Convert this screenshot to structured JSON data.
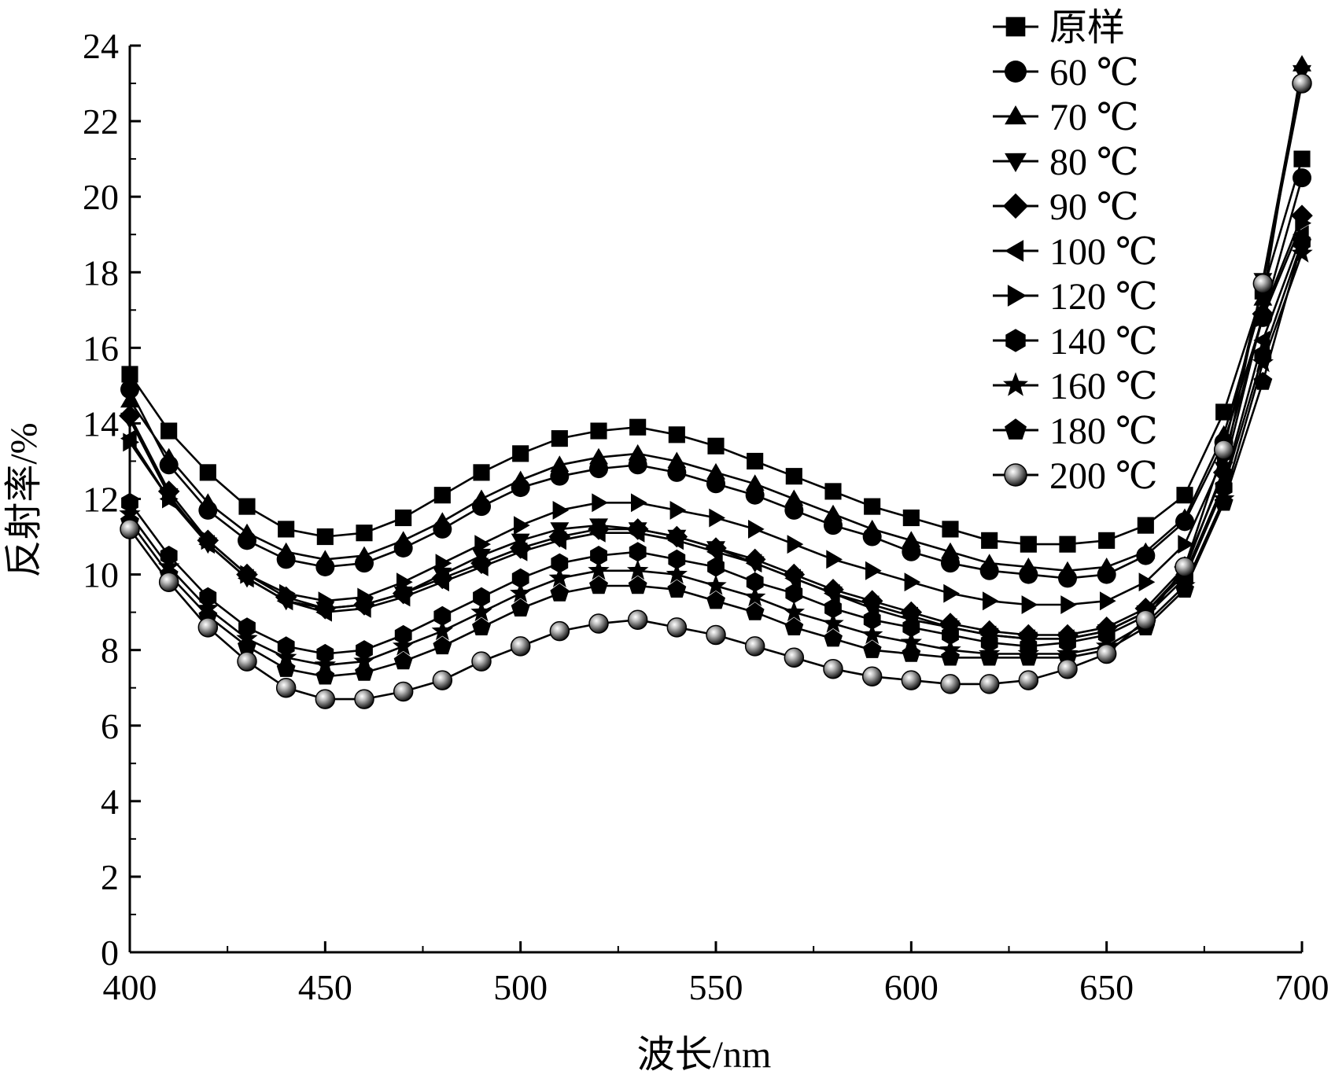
{
  "chart_data": {
    "type": "line",
    "title": "",
    "xlabel": "波长/nm",
    "ylabel": "反射率/%",
    "xlim": [
      400,
      700
    ],
    "ylim": [
      0,
      24
    ],
    "xticks": [
      400,
      450,
      500,
      550,
      600,
      650,
      700
    ],
    "yticks": [
      0,
      2,
      4,
      6,
      8,
      10,
      12,
      14,
      16,
      18,
      20,
      22,
      24
    ],
    "grid": false,
    "legend_position": "top-right",
    "line_color": "#000000",
    "x": [
      400,
      410,
      420,
      430,
      440,
      450,
      460,
      470,
      480,
      490,
      500,
      510,
      520,
      530,
      540,
      550,
      560,
      570,
      580,
      590,
      600,
      610,
      620,
      630,
      640,
      650,
      660,
      670,
      680,
      690,
      700
    ],
    "series": [
      {
        "name": "原样",
        "marker": "square",
        "values": [
          15.3,
          13.8,
          12.7,
          11.8,
          11.2,
          11.0,
          11.1,
          11.5,
          12.1,
          12.7,
          13.2,
          13.6,
          13.8,
          13.9,
          13.7,
          13.4,
          13.0,
          12.6,
          12.2,
          11.8,
          11.5,
          11.2,
          10.9,
          10.8,
          10.8,
          10.9,
          11.3,
          12.1,
          14.3,
          17.5,
          21.0
        ]
      },
      {
        "name": "60 ℃",
        "marker": "circle",
        "values": [
          14.9,
          12.9,
          11.7,
          10.9,
          10.4,
          10.2,
          10.3,
          10.7,
          11.2,
          11.8,
          12.3,
          12.6,
          12.8,
          12.9,
          12.7,
          12.4,
          12.1,
          11.7,
          11.3,
          11.0,
          10.6,
          10.3,
          10.1,
          10.0,
          9.9,
          10.0,
          10.5,
          11.4,
          13.5,
          16.8,
          20.5
        ]
      },
      {
        "name": "70 ℃",
        "marker": "triangle-up",
        "values": [
          14.6,
          13.1,
          11.9,
          11.1,
          10.6,
          10.4,
          10.5,
          10.9,
          11.4,
          12.0,
          12.5,
          12.9,
          13.1,
          13.2,
          13.0,
          12.7,
          12.4,
          12.0,
          11.6,
          11.2,
          10.9,
          10.6,
          10.3,
          10.2,
          10.1,
          10.2,
          10.6,
          11.5,
          13.7,
          17.3,
          23.5
        ]
      },
      {
        "name": "80 ℃",
        "marker": "triangle-down",
        "values": [
          14.1,
          12.1,
          10.8,
          9.9,
          9.3,
          9.1,
          9.2,
          9.5,
          10.0,
          10.5,
          10.9,
          11.2,
          11.3,
          11.2,
          11.0,
          10.7,
          10.3,
          9.9,
          9.5,
          9.1,
          8.8,
          8.6,
          8.4,
          8.3,
          8.3,
          8.5,
          9.0,
          10.1,
          12.8,
          17.8,
          23.3
        ]
      },
      {
        "name": "90 ℃",
        "marker": "diamond",
        "values": [
          14.2,
          12.2,
          10.9,
          10.0,
          9.4,
          9.1,
          9.2,
          9.5,
          9.9,
          10.3,
          10.7,
          11.0,
          11.2,
          11.2,
          11.0,
          10.7,
          10.4,
          10.0,
          9.6,
          9.3,
          9.0,
          8.7,
          8.5,
          8.4,
          8.4,
          8.6,
          9.1,
          10.2,
          12.7,
          16.9,
          19.5
        ]
      },
      {
        "name": "100 ℃",
        "marker": "triangle-left",
        "values": [
          13.6,
          12.0,
          10.8,
          9.9,
          9.3,
          9.0,
          9.1,
          9.4,
          9.8,
          10.2,
          10.6,
          10.9,
          11.1,
          11.1,
          10.9,
          10.6,
          10.3,
          9.9,
          9.5,
          9.2,
          8.9,
          8.6,
          8.4,
          8.3,
          8.3,
          8.5,
          9.0,
          10.0,
          12.4,
          16.2,
          19.0
        ]
      },
      {
        "name": "120 ℃",
        "marker": "triangle-right",
        "values": [
          13.5,
          12.0,
          10.9,
          10.0,
          9.5,
          9.3,
          9.4,
          9.8,
          10.3,
          10.8,
          11.3,
          11.7,
          11.9,
          11.9,
          11.7,
          11.5,
          11.2,
          10.8,
          10.4,
          10.1,
          9.8,
          9.5,
          9.3,
          9.2,
          9.2,
          9.3,
          9.8,
          10.8,
          13.1,
          16.8,
          19.3
        ]
      },
      {
        "name": "140 ℃",
        "marker": "hexagon",
        "values": [
          11.9,
          10.5,
          9.4,
          8.6,
          8.1,
          7.9,
          8.0,
          8.4,
          8.9,
          9.4,
          9.9,
          10.3,
          10.5,
          10.6,
          10.4,
          10.2,
          9.8,
          9.5,
          9.1,
          8.8,
          8.6,
          8.4,
          8.2,
          8.1,
          8.2,
          8.4,
          8.9,
          9.9,
          12.3,
          15.8,
          18.8
        ]
      },
      {
        "name": "160 ℃",
        "marker": "star",
        "values": [
          11.6,
          10.2,
          9.1,
          8.3,
          7.8,
          7.6,
          7.7,
          8.1,
          8.5,
          9.0,
          9.5,
          9.9,
          10.1,
          10.1,
          10.0,
          9.7,
          9.4,
          9.0,
          8.7,
          8.4,
          8.2,
          8.0,
          7.9,
          7.9,
          7.9,
          8.1,
          8.7,
          9.7,
          12.0,
          15.6,
          18.5
        ]
      },
      {
        "name": "180 ℃",
        "marker": "pentagon",
        "values": [
          11.4,
          10.0,
          8.9,
          8.1,
          7.5,
          7.3,
          7.4,
          7.7,
          8.1,
          8.6,
          9.1,
          9.5,
          9.7,
          9.7,
          9.6,
          9.3,
          9.0,
          8.6,
          8.3,
          8.0,
          7.9,
          7.8,
          7.8,
          7.8,
          7.8,
          8.0,
          8.6,
          9.6,
          11.9,
          15.1,
          18.8
        ]
      },
      {
        "name": "200 ℃",
        "marker": "sphere",
        "values": [
          11.2,
          9.8,
          8.6,
          7.7,
          7.0,
          6.7,
          6.7,
          6.9,
          7.2,
          7.7,
          8.1,
          8.5,
          8.7,
          8.8,
          8.6,
          8.4,
          8.1,
          7.8,
          7.5,
          7.3,
          7.2,
          7.1,
          7.1,
          7.2,
          7.5,
          7.9,
          8.8,
          10.2,
          13.3,
          17.7,
          23.0
        ]
      }
    ]
  }
}
